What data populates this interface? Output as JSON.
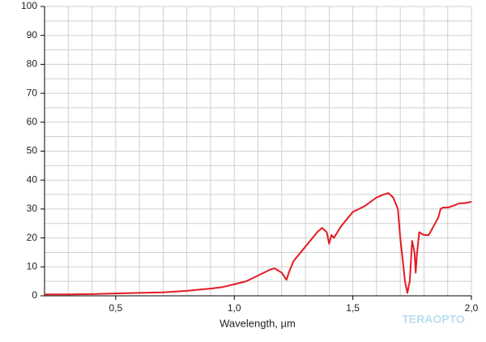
{
  "chart_data": {
    "type": "line",
    "x_label": "Wavelength, µm",
    "watermark": "TERAOPTO",
    "xlim": [
      0.2,
      2.0
    ],
    "xticks": [
      {
        "value": 0.5,
        "label": "0,5"
      },
      {
        "value": 1.0,
        "label": "1,0"
      },
      {
        "value": 1.5,
        "label": "1,5"
      },
      {
        "value": 2.0,
        "label": "2,0"
      }
    ],
    "ylim": [
      0,
      100
    ],
    "yticks": [
      0,
      10,
      20,
      30,
      40,
      50,
      60,
      70,
      80,
      90,
      100
    ],
    "grid": true,
    "x": [
      0.2,
      0.3,
      0.4,
      0.5,
      0.6,
      0.7,
      0.8,
      0.9,
      0.95,
      1.0,
      1.05,
      1.1,
      1.15,
      1.17,
      1.2,
      1.22,
      1.23,
      1.25,
      1.3,
      1.35,
      1.37,
      1.39,
      1.4,
      1.41,
      1.42,
      1.45,
      1.5,
      1.55,
      1.6,
      1.63,
      1.65,
      1.67,
      1.69,
      1.7,
      1.72,
      1.73,
      1.74,
      1.75,
      1.76,
      1.765,
      1.77,
      1.78,
      1.8,
      1.82,
      1.84,
      1.86,
      1.87,
      1.88,
      1.9,
      1.92,
      1.95,
      1.97,
      2.0
    ],
    "series": [
      {
        "color": "#e31b23",
        "values": [
          0.5,
          0.5,
          0.6,
          0.8,
          1.0,
          1.2,
          1.7,
          2.5,
          3,
          4,
          5,
          7,
          9,
          9.5,
          8,
          5.5,
          8,
          12,
          17,
          22,
          23.5,
          22,
          18,
          21,
          20,
          24,
          29,
          31,
          34,
          35,
          35.5,
          34,
          30,
          20,
          5,
          1,
          5,
          19,
          15,
          8,
          14,
          22,
          21,
          21,
          24,
          27,
          30,
          30.5,
          30.5,
          31,
          32,
          32,
          32.5
        ]
      }
    ]
  }
}
